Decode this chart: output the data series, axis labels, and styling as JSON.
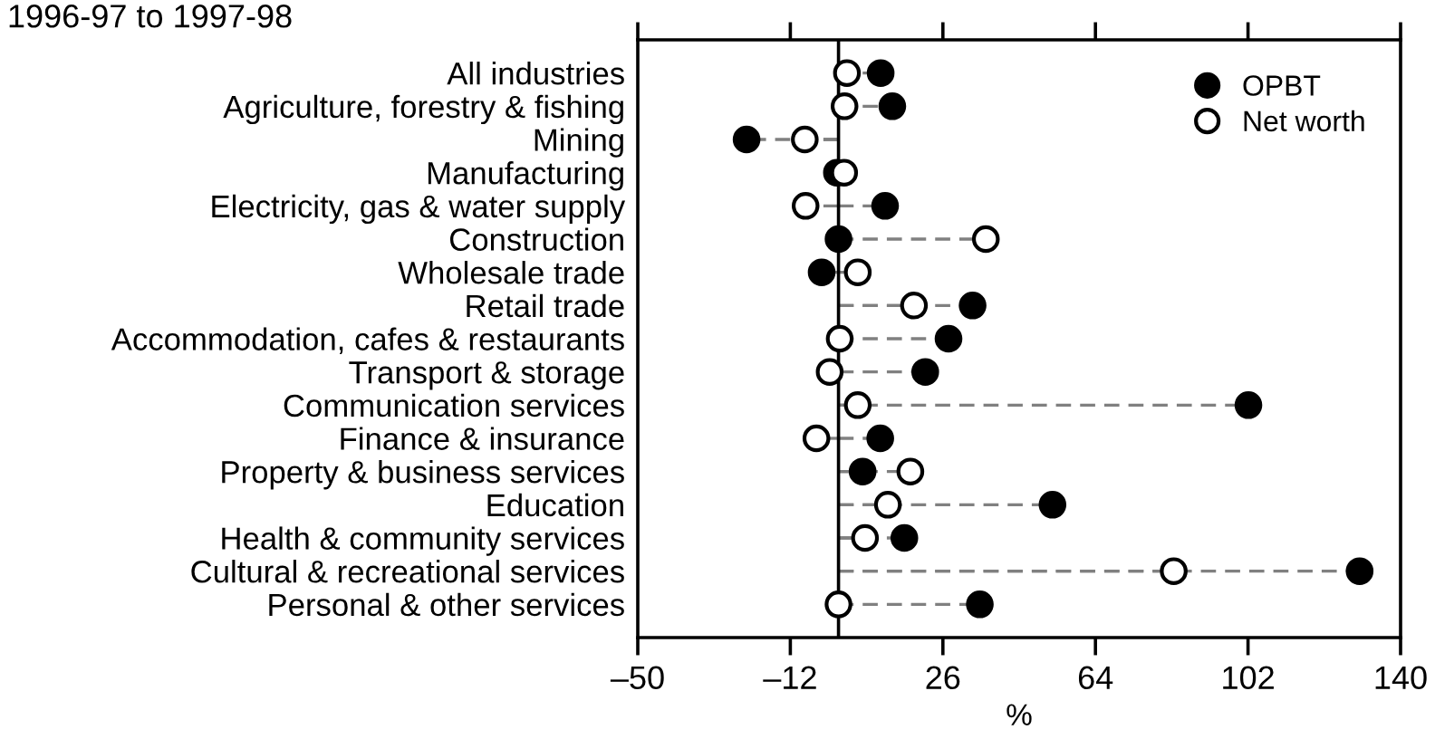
{
  "chart_data": {
    "type": "lollipop",
    "title": "1996-97 to 1997-98",
    "xlabel": "%",
    "orientation": "horizontal",
    "categories": [
      "All industries",
      "Agriculture, forestry & fishing",
      "Mining",
      "Manufacturing",
      "Electricity, gas & water supply",
      "Construction",
      "Wholesale trade",
      "Retail trade",
      "Accommodation, cafes & restaurants",
      "Transport & storage",
      "Communication services",
      "Finance & insurance",
      "Property & business services",
      "Education",
      "Health & community services",
      "Cultural & recreational services",
      "Personal & other services"
    ],
    "series": [
      {
        "name": "OPBT",
        "color": "#000000",
        "values": [
          10.5,
          13.4,
          -22.9,
          -0.4,
          11.6,
          0,
          -4.2,
          33.4,
          27.4,
          21.6,
          102.1,
          10.4,
          6.0,
          53.3,
          16.4,
          129.8,
          35.2
        ]
      },
      {
        "name": "Net worth",
        "color": "#ffffff",
        "values": [
          2.1,
          1.5,
          -8.4,
          1.4,
          -8.2,
          36.7,
          4.8,
          18.8,
          0.3,
          -2.2,
          4.8,
          -5.5,
          17.9,
          12.3,
          6.6,
          83.5,
          0
        ]
      }
    ],
    "xlim": [
      -50,
      140
    ],
    "xticks": [
      {
        "value": -50,
        "label": "–50"
      },
      {
        "value": -12,
        "label": "–12"
      },
      26,
      64,
      102,
      140
    ],
    "ref_lines": [
      {
        "axis": "x",
        "value": 0,
        "color": "#000000"
      }
    ],
    "marker": "circle",
    "line_style": "dashed",
    "legend": "top right"
  }
}
